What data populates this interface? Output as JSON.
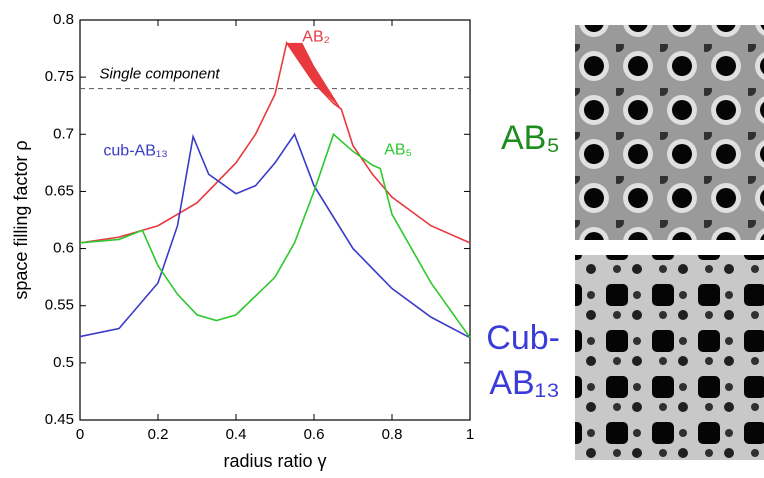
{
  "chart_data": {
    "type": "line",
    "xlabel": "radius ratio γ",
    "ylabel": "space filling factor ρ",
    "xlim": [
      0,
      1
    ],
    "ylim": [
      0.45,
      0.8
    ],
    "xticks": [
      0,
      0.2,
      0.4,
      0.6,
      0.8,
      1
    ],
    "yticks": [
      0.45,
      0.5,
      0.55,
      0.6,
      0.65,
      0.7,
      0.75,
      0.8
    ],
    "reference": {
      "label": "Single component",
      "value": 0.74
    },
    "series": [
      {
        "name": "AB₂",
        "color": "#e8393f",
        "x": [
          0,
          0.1,
          0.2,
          0.3,
          0.4,
          0.45,
          0.5,
          0.53,
          0.56,
          0.6,
          0.65,
          0.67,
          0.7,
          0.75,
          0.8,
          0.9,
          1
        ],
        "values": [
          0.605,
          0.61,
          0.62,
          0.64,
          0.675,
          0.7,
          0.735,
          0.78,
          0.765,
          0.745,
          0.727,
          0.722,
          0.69,
          0.665,
          0.645,
          0.62,
          0.605
        ],
        "band_x": [
          0.53,
          0.57,
          0.6,
          0.67
        ],
        "band_upper": [
          0.78,
          0.78,
          0.76,
          0.722
        ]
      },
      {
        "name": "cub-AB₁₃",
        "color": "#3b3bc8",
        "x": [
          0,
          0.1,
          0.2,
          0.25,
          0.29,
          0.33,
          0.4,
          0.45,
          0.5,
          0.55,
          0.6,
          0.7,
          0.8,
          0.9,
          1
        ],
        "values": [
          0.523,
          0.53,
          0.57,
          0.62,
          0.698,
          0.665,
          0.648,
          0.655,
          0.675,
          0.7,
          0.655,
          0.6,
          0.565,
          0.54,
          0.522
        ]
      },
      {
        "name": "AB₅",
        "color": "#2ec82e",
        "x": [
          0,
          0.1,
          0.16,
          0.2,
          0.25,
          0.3,
          0.35,
          0.4,
          0.5,
          0.55,
          0.6,
          0.65,
          0.7,
          0.75,
          0.77,
          0.8,
          0.9,
          1
        ],
        "values": [
          0.605,
          0.608,
          0.616,
          0.585,
          0.56,
          0.542,
          0.537,
          0.542,
          0.575,
          0.605,
          0.65,
          0.7,
          0.685,
          0.673,
          0.67,
          0.63,
          0.57,
          0.522
        ]
      }
    ]
  },
  "panels": [
    {
      "lines": [
        "AB₅"
      ],
      "color": "#1e8c1e"
    },
    {
      "lines": [
        "Cub-",
        "AB₁₃"
      ],
      "color": "#3b3bd8"
    }
  ]
}
